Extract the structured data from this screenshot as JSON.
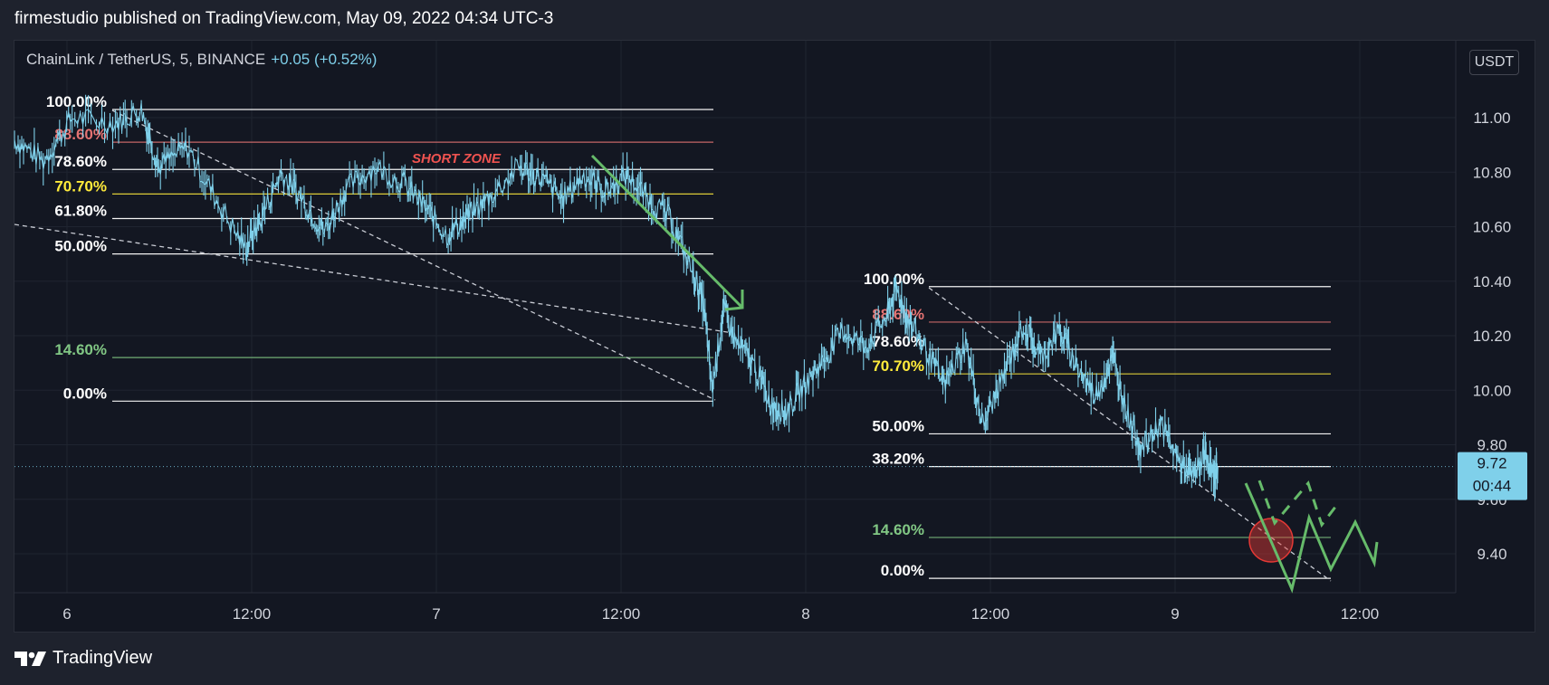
{
  "header": {
    "published": "firmestudio published on TradingView.com, May 09, 2022 04:34 UTC-3"
  },
  "legend": {
    "symbol": "ChainLink / TetherUS, 5, BINANCE",
    "change": "+0.05 (+0.52%)"
  },
  "currency": "USDT",
  "footer": {
    "brand": "TradingView"
  },
  "colors": {
    "background": "#131722",
    "price_line": "#7fd0ea",
    "fib_white": "#ffffff",
    "fib_red": "#e57373",
    "fib_yellow": "#ffeb3b",
    "fib_green": "#81c784",
    "projection_green": "#66bb6a"
  },
  "chart_data": {
    "type": "line",
    "symbol": "LINKUSDT",
    "interval": "5",
    "y_axis": {
      "ticks": [
        "11.00",
        "10.80",
        "10.60",
        "10.40",
        "10.20",
        "10.00",
        "9.80",
        "9.60",
        "9.40"
      ],
      "ylim": [
        9.25,
        11.15
      ]
    },
    "x_axis": {
      "ticks": [
        "6",
        "12:00",
        "7",
        "12:00",
        "8",
        "12:00",
        "9",
        "12:00"
      ]
    },
    "last_price": {
      "value": "9.72",
      "countdown": "00:44"
    },
    "price_path": [
      [
        0.0,
        10.92
      ],
      [
        0.02,
        10.84
      ],
      [
        0.04,
        11.0
      ],
      [
        0.07,
        10.98
      ],
      [
        0.088,
        11.03
      ],
      [
        0.1,
        10.82
      ],
      [
        0.12,
        10.89
      ],
      [
        0.14,
        10.7
      ],
      [
        0.16,
        10.52
      ],
      [
        0.17,
        10.62
      ],
      [
        0.185,
        10.8
      ],
      [
        0.2,
        10.7
      ],
      [
        0.215,
        10.58
      ],
      [
        0.23,
        10.74
      ],
      [
        0.25,
        10.82
      ],
      [
        0.27,
        10.76
      ],
      [
        0.285,
        10.67
      ],
      [
        0.3,
        10.57
      ],
      [
        0.315,
        10.64
      ],
      [
        0.33,
        10.71
      ],
      [
        0.35,
        10.82
      ],
      [
        0.365,
        10.78
      ],
      [
        0.38,
        10.7
      ],
      [
        0.395,
        10.79
      ],
      [
        0.41,
        10.73
      ],
      [
        0.425,
        10.79
      ],
      [
        0.44,
        10.7
      ],
      [
        0.455,
        10.63
      ],
      [
        0.47,
        10.44
      ],
      [
        0.478,
        10.32
      ],
      [
        0.484,
        10.0
      ],
      [
        0.492,
        10.3
      ],
      [
        0.5,
        10.18
      ],
      [
        0.512,
        10.1
      ],
      [
        0.525,
        9.95
      ],
      [
        0.535,
        9.92
      ],
      [
        0.548,
        10.02
      ],
      [
        0.56,
        10.1
      ],
      [
        0.575,
        10.22
      ],
      [
        0.59,
        10.16
      ],
      [
        0.605,
        10.27
      ],
      [
        0.612,
        10.37
      ],
      [
        0.62,
        10.26
      ],
      [
        0.632,
        10.15
      ],
      [
        0.645,
        10.02
      ],
      [
        0.66,
        10.17
      ],
      [
        0.672,
        9.87
      ],
      [
        0.685,
        10.04
      ],
      [
        0.7,
        10.24
      ],
      [
        0.712,
        10.12
      ],
      [
        0.725,
        10.22
      ],
      [
        0.738,
        10.08
      ],
      [
        0.75,
        9.98
      ],
      [
        0.762,
        10.12
      ],
      [
        0.772,
        9.92
      ],
      [
        0.782,
        9.78
      ],
      [
        0.795,
        9.88
      ],
      [
        0.808,
        9.74
      ],
      [
        0.818,
        9.68
      ],
      [
        0.826,
        9.77
      ],
      [
        0.832,
        9.68
      ],
      [
        0.835,
        9.72
      ]
    ],
    "fib_retracements": [
      {
        "levels": [
          {
            "label": "100.00%",
            "price": 11.03,
            "color": "white"
          },
          {
            "label": "88.60%",
            "price": 10.91,
            "color": "red"
          },
          {
            "label": "78.60%",
            "price": 10.81,
            "color": "white"
          },
          {
            "label": "70.70%",
            "price": 10.72,
            "color": "yellow"
          },
          {
            "label": "61.80%",
            "price": 10.63,
            "color": "white"
          },
          {
            "label": "50.00%",
            "price": 10.5,
            "color": "white"
          },
          {
            "label": "14.60%",
            "price": 10.12,
            "color": "green"
          },
          {
            "label": "0.00%",
            "price": 9.96,
            "color": "white"
          }
        ]
      },
      {
        "levels": [
          {
            "label": "100.00%",
            "price": 10.38,
            "color": "white"
          },
          {
            "label": "88.60%",
            "price": 10.25,
            "color": "red"
          },
          {
            "label": "78.60%",
            "price": 10.15,
            "color": "white"
          },
          {
            "label": "70.70%",
            "price": 10.06,
            "color": "yellow"
          },
          {
            "label": "50.00%",
            "price": 9.84,
            "color": "white"
          },
          {
            "label": "38.20%",
            "price": 9.72,
            "color": "white"
          },
          {
            "label": "14.60%",
            "price": 9.46,
            "color": "green"
          },
          {
            "label": "0.00%",
            "price": 9.31,
            "color": "white"
          }
        ]
      }
    ],
    "annotations": {
      "short_zone": "SHORT ZONE"
    }
  }
}
